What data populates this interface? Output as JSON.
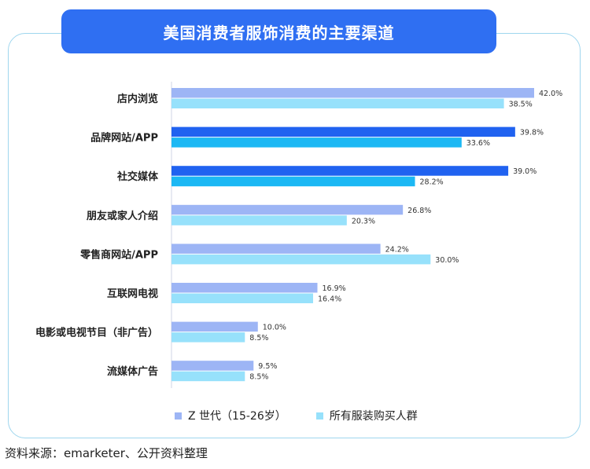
{
  "title": "美国消费者服饰消费的主要渠道",
  "source": "资料来源：emarketer、公开资料整理",
  "colors": {
    "z_gen": "#9db5f5",
    "z_gen_highlight": "#2062f0",
    "all_buyers": "#97e1fb",
    "all_buyers_highlight": "#1cb8f4",
    "frame_border": "#9fd6ee",
    "banner": "#2f6ff2"
  },
  "chart_data": {
    "type": "bar",
    "orientation": "horizontal",
    "title": "美国消费者服饰消费的主要渠道",
    "categories": [
      "店内浏览",
      "品牌网站/APP",
      "社交媒体",
      "朋友或家人介绍",
      "零售商网站/APP",
      "互联网电视",
      "电影或电视节目（非广告）",
      "流媒体广告"
    ],
    "series": [
      {
        "name": "Z 世代（15-26岁）",
        "values": [
          42.0,
          39.8,
          39.0,
          26.8,
          24.2,
          16.9,
          10.0,
          9.5
        ]
      },
      {
        "name": "所有服装购买人群",
        "values": [
          38.5,
          33.6,
          28.2,
          20.3,
          30.0,
          16.4,
          8.5,
          8.5
        ]
      }
    ],
    "value_suffix": "%",
    "highlighted_categories": [
      "品牌网站/APP",
      "社交媒体"
    ],
    "xlim": [
      0,
      42
    ],
    "legend_position": "bottom",
    "grid": false
  }
}
